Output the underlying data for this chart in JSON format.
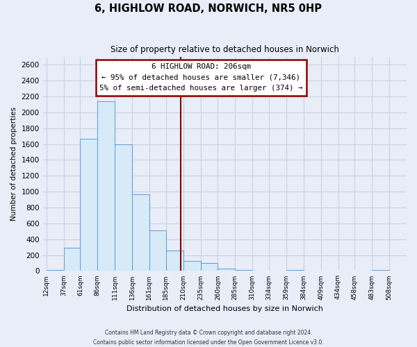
{
  "title": "6, HIGHLOW ROAD, NORWICH, NR5 0HP",
  "subtitle": "Size of property relative to detached houses in Norwich",
  "xlabel": "Distribution of detached houses by size in Norwich",
  "ylabel": "Number of detached properties",
  "bar_left_edges": [
    12,
    37,
    61,
    86,
    111,
    136,
    161,
    185,
    210,
    235,
    260,
    285,
    310,
    334,
    359,
    384,
    409,
    434,
    458,
    483
  ],
  "bar_widths": [
    25,
    24,
    25,
    25,
    25,
    25,
    24,
    25,
    25,
    25,
    25,
    25,
    24,
    25,
    25,
    25,
    25,
    24,
    25,
    25
  ],
  "bar_heights": [
    15,
    295,
    1670,
    2135,
    1600,
    965,
    510,
    255,
    125,
    100,
    30,
    15,
    0,
    0,
    15,
    0,
    0,
    0,
    0,
    15
  ],
  "bar_color": "#d6eaf8",
  "bar_edge_color": "#5b9bd5",
  "vline_x": 206,
  "vline_color": "#8b0000",
  "ylim": [
    0,
    2700
  ],
  "yticks": [
    0,
    200,
    400,
    600,
    800,
    1000,
    1200,
    1400,
    1600,
    1800,
    2000,
    2200,
    2400,
    2600
  ],
  "xtick_labels": [
    "12sqm",
    "37sqm",
    "61sqm",
    "86sqm",
    "111sqm",
    "136sqm",
    "161sqm",
    "185sqm",
    "210sqm",
    "235sqm",
    "260sqm",
    "285sqm",
    "310sqm",
    "334sqm",
    "359sqm",
    "384sqm",
    "409sqm",
    "434sqm",
    "458sqm",
    "483sqm",
    "508sqm"
  ],
  "xtick_positions": [
    12,
    37,
    61,
    86,
    111,
    136,
    161,
    185,
    210,
    235,
    260,
    285,
    310,
    334,
    359,
    384,
    409,
    434,
    458,
    483,
    508
  ],
  "annotation_title": "6 HIGHLOW ROAD: 206sqm",
  "annotation_line1": "← 95% of detached houses are smaller (7,346)",
  "annotation_line2": "5% of semi-detached houses are larger (374) →",
  "footer1": "Contains HM Land Registry data © Crown copyright and database right 2024.",
  "footer2": "Contains public sector information licensed under the Open Government Licence v3.0.",
  "bg_color": "#e8edf8",
  "grid_color": "#c8d0e0",
  "xlim_min": 7,
  "xlim_max": 533
}
